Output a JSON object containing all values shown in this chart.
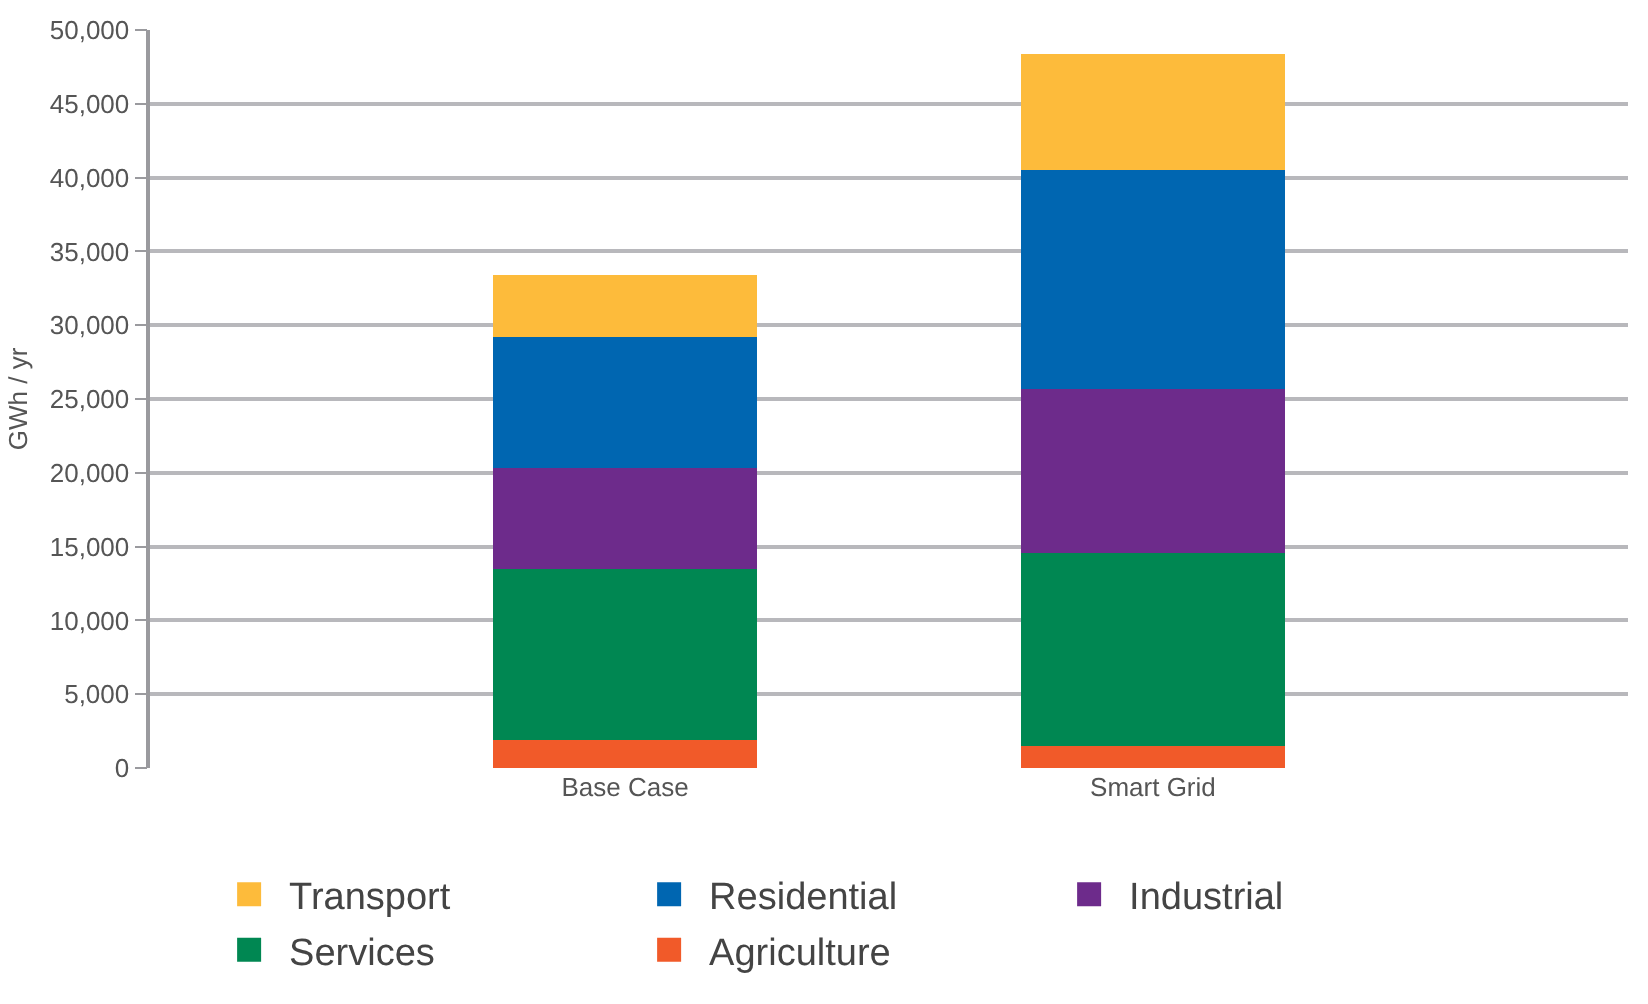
{
  "chart_data": {
    "type": "bar",
    "stacked": true,
    "ylabel": "GWh / yr",
    "categories": [
      "Base Case",
      "Smart Grid"
    ],
    "series": [
      {
        "name": "Agriculture",
        "color": "#f15a29",
        "values": [
          1900,
          1500
        ]
      },
      {
        "name": "Services",
        "color": "#008752",
        "values": [
          11600,
          13100
        ]
      },
      {
        "name": "Industrial",
        "color": "#6d2b8b",
        "values": [
          6800,
          11100
        ]
      },
      {
        "name": "Residential",
        "color": "#0066b1",
        "values": [
          8900,
          14800
        ]
      },
      {
        "name": "Transport",
        "color": "#fdbb3b",
        "values": [
          4200,
          7900
        ]
      }
    ],
    "ylim": [
      0,
      50000
    ],
    "yticks": [
      {
        "value": 0,
        "label": "0"
      },
      {
        "value": 5000,
        "label": "5,000"
      },
      {
        "value": 10000,
        "label": "10,000"
      },
      {
        "value": 15000,
        "label": "15,000"
      },
      {
        "value": 20000,
        "label": "20,000"
      },
      {
        "value": 25000,
        "label": "25,000"
      },
      {
        "value": 30000,
        "label": "30,000"
      },
      {
        "value": 35000,
        "label": "35,000"
      },
      {
        "value": 40000,
        "label": "40,000"
      },
      {
        "value": 45000,
        "label": "45,000"
      },
      {
        "value": 50000,
        "label": "50,000"
      }
    ],
    "grid": "y",
    "legend": "bottom"
  }
}
